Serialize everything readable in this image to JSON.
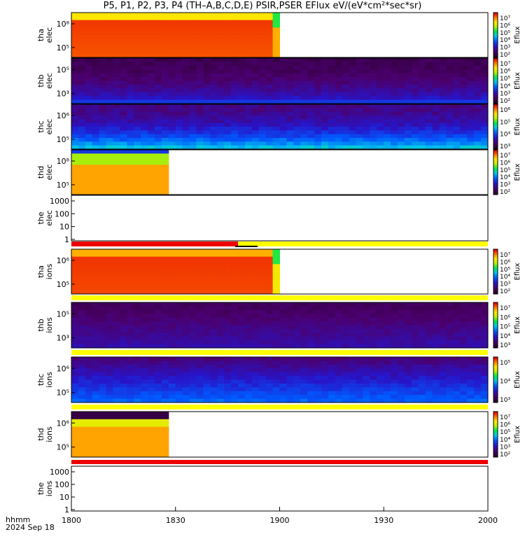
{
  "title": "P5, P1, P2, P3, P4 (TH–A,B,C,D,E) PSIR,PSER EFlux eV/(eV*cm²*sec*sr)",
  "footer": {
    "line1": "hhmm",
    "line2": "2024 Sep 18"
  },
  "chart_data": {
    "type": "heatmap",
    "x_axis": {
      "range": [
        "18:00",
        "20:00"
      ],
      "ticks": [
        "1800",
        "1830",
        "1900",
        "1930",
        "2000"
      ]
    },
    "colorbar_label": "Eflux",
    "panels": [
      {
        "id": "tha_elec",
        "ylabel": [
          "tha",
          "elec"
        ],
        "ytick_labels": [
          "10⁸",
          "10⁵"
        ],
        "data_extent": [
          "18:00",
          "19:01"
        ],
        "flag_bar": "none",
        "colorbar_ticks": [
          "10⁷",
          "10⁶",
          "10⁵",
          "10⁴",
          "10³",
          "10²"
        ]
      },
      {
        "id": "thb_elec",
        "ylabel": [
          "thb",
          "elec"
        ],
        "ytick_labels": [
          "10⁵",
          "10³"
        ],
        "data_extent": [
          "18:00",
          "20:00"
        ],
        "flag_bar": "none",
        "colorbar_ticks": [
          "10⁷",
          "10⁶",
          "10⁵",
          "10⁴",
          "10³",
          "10²"
        ]
      },
      {
        "id": "thc_elec",
        "ylabel": [
          "thc",
          "elec"
        ],
        "ytick_labels": [
          "10⁶",
          "10⁵"
        ],
        "data_extent": [
          "18:00",
          "20:00"
        ],
        "flag_bar": "none",
        "colorbar_ticks": [
          "10⁶",
          "10⁵",
          "10⁴",
          "10³"
        ]
      },
      {
        "id": "thd_elec",
        "ylabel": [
          "thd",
          "elec"
        ],
        "ytick_labels": [
          "10⁸",
          "10⁵"
        ],
        "data_extent": [
          "18:00",
          "18:29"
        ],
        "flag_bar": "none",
        "colorbar_ticks": [
          "10⁷",
          "10⁶",
          "10⁵",
          "10⁴",
          "10³",
          "10²"
        ]
      },
      {
        "id": "the_elec",
        "ylabel": [
          "the",
          "elec"
        ],
        "ytick_labels": [
          "1000",
          "100",
          "10",
          "1"
        ],
        "data_extent": null,
        "flag_bar": "red-then-yellow",
        "colorbar_ticks": []
      },
      {
        "id": "tha_ions",
        "ylabel": [
          "tha",
          "ions"
        ],
        "ytick_labels": [
          "10⁶",
          "10⁵"
        ],
        "data_extent": [
          "18:00",
          "19:01"
        ],
        "flag_bar": "yellow",
        "colorbar_ticks": [
          "10⁷",
          "10⁶",
          "10⁵",
          "10⁴",
          "10³",
          "10²"
        ]
      },
      {
        "id": "thb_ions",
        "ylabel": [
          "thb",
          "ions"
        ],
        "ytick_labels": [
          "10⁵",
          "10³"
        ],
        "data_extent": [
          "18:00",
          "20:00"
        ],
        "flag_bar": "yellow",
        "colorbar_ticks": [
          "10⁷",
          "10⁶",
          "10⁵",
          "10⁴",
          "10³"
        ]
      },
      {
        "id": "thc_ions",
        "ylabel": [
          "thc",
          "ions"
        ],
        "ytick_labels": [
          "10⁶",
          "10⁵"
        ],
        "data_extent": [
          "18:00",
          "20:00"
        ],
        "flag_bar": "yellow",
        "colorbar_ticks": [
          "10⁵",
          "10⁴",
          "10³"
        ]
      },
      {
        "id": "thd_ions",
        "ylabel": [
          "thd",
          "ions"
        ],
        "ytick_labels": [
          "10⁶",
          "10⁵"
        ],
        "data_extent": [
          "18:00",
          "18:29"
        ],
        "flag_bar": "red",
        "colorbar_ticks": [
          "10⁷",
          "10⁶",
          "10⁵",
          "10⁴",
          "10³",
          "10²"
        ]
      },
      {
        "id": "the_ions",
        "ylabel": [
          "the",
          "ions"
        ],
        "ytick_labels": [
          "1000",
          "100",
          "10",
          "1"
        ],
        "data_extent": null,
        "flag_bar": "none",
        "colorbar_ticks": []
      }
    ]
  }
}
